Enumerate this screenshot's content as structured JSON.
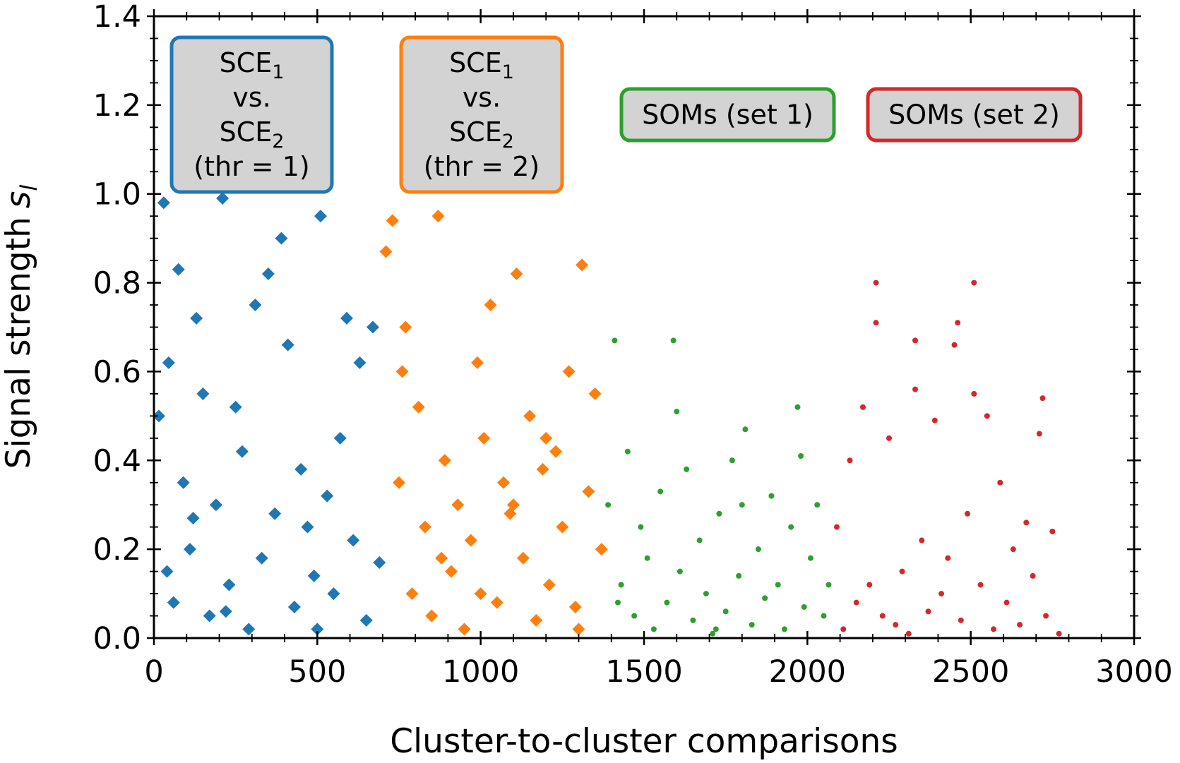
{
  "chart_data": {
    "type": "scatter",
    "xlabel": "Cluster-to-cluster comparisons",
    "ylabel": "Signal strength",
    "ylabel_symbol": "s",
    "ylabel_subscript": "l",
    "xlim": [
      0,
      3000
    ],
    "ylim": [
      0,
      1.4
    ],
    "xticks": [
      0,
      500,
      1000,
      1500,
      2000,
      2500,
      3000
    ],
    "yticks": [
      {
        "value": 0,
        "label": "0.0"
      },
      {
        "value": 0.2,
        "label": "0.2"
      },
      {
        "value": 0.4,
        "label": "0.4"
      },
      {
        "value": 0.6,
        "label": "0.6"
      },
      {
        "value": 0.8,
        "label": "0.8"
      },
      {
        "value": 1,
        "label": "1.0"
      },
      {
        "value": 1.2,
        "label": "1.2"
      },
      {
        "value": 1.4,
        "label": "1.4"
      }
    ],
    "minor_divisions": {
      "x": 5,
      "y": 4
    },
    "series": [
      {
        "color": "#1f77b4",
        "marker": "diamond",
        "x": [
          15,
          30,
          45,
          60,
          75,
          90,
          110,
          130,
          150,
          170,
          190,
          210,
          230,
          250,
          270,
          290,
          310,
          330,
          350,
          370,
          390,
          410,
          430,
          450,
          470,
          490,
          510,
          530,
          550,
          570,
          590,
          610,
          630,
          650,
          670,
          690,
          40,
          120,
          220,
          500
        ],
        "values": [
          0.5,
          0.98,
          0.62,
          0.08,
          0.83,
          0.35,
          0.2,
          0.72,
          0.55,
          0.05,
          0.3,
          0.99,
          0.12,
          0.52,
          0.42,
          0.02,
          0.75,
          0.18,
          0.82,
          0.28,
          0.9,
          0.66,
          0.07,
          0.38,
          0.25,
          0.14,
          0.95,
          0.32,
          0.1,
          0.45,
          0.72,
          0.22,
          0.62,
          0.04,
          0.7,
          0.17,
          0.15,
          0.27,
          0.06,
          0.02
        ]
      },
      {
        "color": "#ff7f0e",
        "marker": "diamond",
        "x": [
          710,
          730,
          750,
          770,
          790,
          810,
          830,
          850,
          870,
          890,
          910,
          930,
          950,
          970,
          990,
          1010,
          1030,
          1050,
          1070,
          1090,
          1110,
          1130,
          1150,
          1170,
          1190,
          1210,
          1230,
          1250,
          1270,
          1290,
          1310,
          1330,
          1350,
          1370,
          760,
          880,
          1000,
          1100,
          1200,
          1300
        ],
        "values": [
          0.87,
          0.94,
          0.35,
          0.7,
          0.1,
          0.52,
          0.25,
          0.05,
          0.95,
          0.4,
          0.15,
          0.3,
          0.02,
          0.22,
          0.62,
          0.45,
          0.75,
          0.08,
          0.35,
          0.28,
          0.82,
          0.18,
          0.5,
          0.04,
          0.38,
          0.12,
          0.42,
          0.25,
          0.6,
          0.07,
          0.84,
          0.33,
          0.55,
          0.2,
          0.6,
          0.18,
          0.1,
          0.3,
          0.45,
          0.02
        ]
      },
      {
        "color": "#2ca02c",
        "marker": "circle",
        "x": [
          1390,
          1410,
          1430,
          1450,
          1470,
          1490,
          1510,
          1530,
          1550,
          1570,
          1590,
          1610,
          1630,
          1650,
          1670,
          1690,
          1710,
          1730,
          1750,
          1770,
          1790,
          1810,
          1830,
          1850,
          1870,
          1890,
          1910,
          1930,
          1950,
          1970,
          1990,
          2010,
          2030,
          2050,
          2065,
          1420,
          1600,
          1800,
          1980,
          1720
        ],
        "values": [
          0.3,
          0.67,
          0.12,
          0.42,
          0.05,
          0.25,
          0.18,
          0.02,
          0.33,
          0.08,
          0.67,
          0.15,
          0.38,
          0.04,
          0.22,
          0.1,
          0.01,
          0.28,
          0.06,
          0.4,
          0.14,
          0.47,
          0.03,
          0.2,
          0.09,
          0.32,
          0.12,
          0.02,
          0.25,
          0.52,
          0.07,
          0.18,
          0.3,
          0.05,
          0.12,
          0.08,
          0.51,
          0.3,
          0.41,
          0.02
        ]
      },
      {
        "color": "#d62728",
        "marker": "circle",
        "x": [
          2090,
          2110,
          2130,
          2150,
          2170,
          2190,
          2210,
          2230,
          2250,
          2270,
          2290,
          2310,
          2330,
          2350,
          2370,
          2390,
          2410,
          2430,
          2450,
          2470,
          2490,
          2510,
          2530,
          2550,
          2570,
          2590,
          2610,
          2630,
          2650,
          2670,
          2690,
          2710,
          2730,
          2750,
          2770,
          2210,
          2510,
          2460,
          2330,
          2720
        ],
        "values": [
          0.25,
          0.02,
          0.4,
          0.08,
          0.52,
          0.12,
          0.8,
          0.05,
          0.45,
          0.03,
          0.15,
          0.01,
          0.67,
          0.22,
          0.06,
          0.49,
          0.1,
          0.18,
          0.66,
          0.04,
          0.28,
          0.55,
          0.12,
          0.5,
          0.02,
          0.35,
          0.08,
          0.2,
          0.03,
          0.26,
          0.14,
          0.46,
          0.05,
          0.24,
          0.01,
          0.71,
          0.8,
          0.71,
          0.56,
          0.54
        ]
      }
    ],
    "annotations": [
      {
        "color": "#1f77b4",
        "lines": [
          {
            "text": "SCE",
            "sub": "1"
          },
          {
            "text": "vs."
          },
          {
            "text": "SCE",
            "sub": "2"
          },
          {
            "text": "(thr = 1)"
          }
        ]
      },
      {
        "color": "#ff7f0e",
        "lines": [
          {
            "text": "SCE",
            "sub": "1"
          },
          {
            "text": "vs."
          },
          {
            "text": "SCE",
            "sub": "2"
          },
          {
            "text": "(thr = 2)"
          }
        ]
      },
      {
        "color": "#2ca02c",
        "lines": [
          {
            "text": "SOMs (set 1)"
          }
        ]
      },
      {
        "color": "#d62728",
        "lines": [
          {
            "text": "SOMs (set 2)"
          }
        ]
      }
    ]
  }
}
